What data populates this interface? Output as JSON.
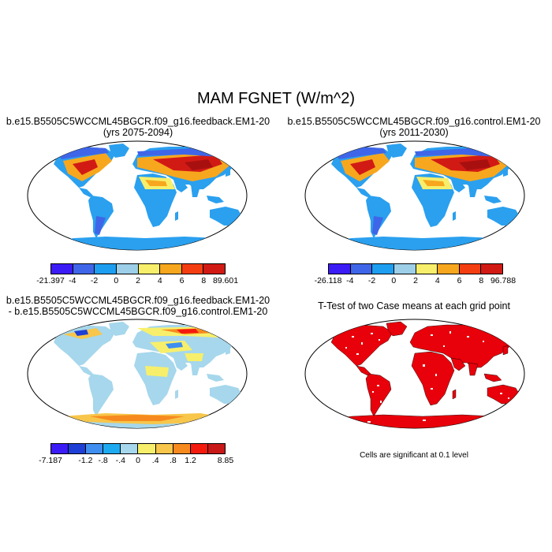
{
  "title": "MAM FGNET (W/m^2)",
  "palette": {
    "colors9": [
      "#3b1cf7",
      "#3f66e8",
      "#1e9ef0",
      "#9dcfe8",
      "#f7ef6b",
      "#f7a71e",
      "#f43e12",
      "#d21a14",
      "#a81010"
    ],
    "colors10": [
      "#3b1cf7",
      "#1e3fd6",
      "#3f8ef0",
      "#1eaaf0",
      "#a6d7ec",
      "#f7ef6b",
      "#f7c64a",
      "#f78a1e",
      "#f41a0e",
      "#c81818"
    ],
    "ttest": "#e8000a"
  },
  "panels": {
    "feedback": {
      "title": "b.e15.B5505C5WCCML45BGCR.f09_g16.feedback.EM1-20",
      "subtitle": "(yrs 2075-2094)",
      "ticks": [
        "-21.397",
        "-4",
        "-2",
        "0",
        "2",
        "4",
        "6",
        "8",
        "89.601"
      ]
    },
    "control": {
      "title": "b.e15.B5505C5WCCML45BGCR.f09_g16.control.EM1-20",
      "subtitle": "(yrs 2011-2030)",
      "ticks": [
        "-26.118",
        "-4",
        "-2",
        "0",
        "2",
        "4",
        "6",
        "8",
        "96.788"
      ]
    },
    "difference": {
      "title": "b.e15.B5505C5WCCML45BGCR.f09_g16.feedback.EM1-20",
      "subtitle": "- b.e15.B5505C5WCCML45BGCR.f09_g16.control.EM1-20",
      "ticks": [
        "-7.187",
        "-1.2",
        "-.8",
        "-.4",
        "0",
        ".4",
        ".8",
        "1.2",
        "8.85"
      ]
    },
    "ttest": {
      "title": "T-Test of two Case means at each grid point",
      "note": "Cells are significant at 0.1 level"
    }
  }
}
